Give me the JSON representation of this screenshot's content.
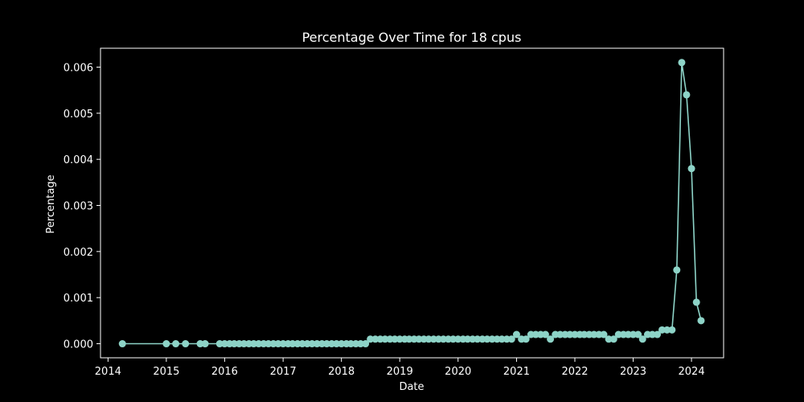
{
  "chart_data": {
    "type": "line",
    "title": "Percentage Over Time for 18 cpus",
    "xlabel": "Date",
    "ylabel": "Percentage",
    "x_ticks": [
      "2014",
      "2015",
      "2016",
      "2017",
      "2018",
      "2019",
      "2020",
      "2021",
      "2022",
      "2023",
      "2024"
    ],
    "y_ticks": [
      "0.000",
      "0.001",
      "0.002",
      "0.003",
      "0.004",
      "0.005",
      "0.006"
    ],
    "xlim": [
      "2013-11-15",
      "2024-07-20"
    ],
    "ylim": [
      -0.000305,
      0.00641
    ],
    "grid": false,
    "legend": "none",
    "colors": {
      "background": "#000000",
      "series": "#8dd3c7",
      "axes": "#ffffff"
    },
    "series": [
      {
        "x": [
          "2014-04-01",
          "2015-01-01",
          "2015-03-01",
          "2015-05-01",
          "2015-08-01",
          "2015-09-01",
          "2015-12-01",
          "2016-01-01",
          "2016-02-01",
          "2016-03-01",
          "2016-04-01",
          "2016-05-01",
          "2016-06-01",
          "2016-07-01",
          "2016-08-01",
          "2016-09-01",
          "2016-10-01",
          "2016-11-01",
          "2016-12-01",
          "2017-01-01",
          "2017-02-01",
          "2017-03-01",
          "2017-04-01",
          "2017-05-01",
          "2017-06-01",
          "2017-07-01",
          "2017-08-01",
          "2017-09-01",
          "2017-10-01",
          "2017-11-01",
          "2017-12-01",
          "2018-01-01",
          "2018-02-01",
          "2018-03-01",
          "2018-04-01",
          "2018-05-01",
          "2018-06-01",
          "2018-07-01",
          "2018-08-01",
          "2018-09-01",
          "2018-10-01",
          "2018-11-01",
          "2018-12-01",
          "2019-01-01",
          "2019-02-01",
          "2019-03-01",
          "2019-04-01",
          "2019-05-01",
          "2019-06-01",
          "2019-07-01",
          "2019-08-01",
          "2019-09-01",
          "2019-10-01",
          "2019-11-01",
          "2019-12-01",
          "2020-01-01",
          "2020-02-01",
          "2020-03-01",
          "2020-04-01",
          "2020-05-01",
          "2020-06-01",
          "2020-07-01",
          "2020-08-01",
          "2020-09-01",
          "2020-10-01",
          "2020-11-01",
          "2020-12-01",
          "2021-01-01",
          "2021-02-01",
          "2021-03-01",
          "2021-04-01",
          "2021-05-01",
          "2021-06-01",
          "2021-07-01",
          "2021-08-01",
          "2021-09-01",
          "2021-10-01",
          "2021-11-01",
          "2021-12-01",
          "2022-01-01",
          "2022-02-01",
          "2022-03-01",
          "2022-04-01",
          "2022-05-01",
          "2022-06-01",
          "2022-07-01",
          "2022-08-01",
          "2022-09-01",
          "2022-10-01",
          "2022-11-01",
          "2022-12-01",
          "2023-01-01",
          "2023-02-01",
          "2023-03-01",
          "2023-04-01",
          "2023-05-01",
          "2023-06-01",
          "2023-07-01",
          "2023-08-01",
          "2023-09-01",
          "2023-10-01",
          "2023-11-01",
          "2023-12-01",
          "2024-01-01",
          "2024-02-01",
          "2024-03-01"
        ],
        "y": [
          0.0,
          0.0,
          0.0,
          0.0,
          0.0,
          0.0,
          0.0,
          0.0,
          0.0,
          0.0,
          0.0,
          0.0,
          0.0,
          0.0,
          0.0,
          0.0,
          0.0,
          0.0,
          0.0,
          0.0,
          0.0,
          0.0,
          0.0,
          0.0,
          0.0,
          0.0,
          0.0,
          0.0,
          0.0,
          0.0,
          0.0,
          0.0,
          0.0,
          0.0,
          0.0,
          0.0,
          0.0,
          0.0001,
          0.0001,
          0.0001,
          0.0001,
          0.0001,
          0.0001,
          0.0001,
          0.0001,
          0.0001,
          0.0001,
          0.0001,
          0.0001,
          0.0001,
          0.0001,
          0.0001,
          0.0001,
          0.0001,
          0.0001,
          0.0001,
          0.0001,
          0.0001,
          0.0001,
          0.0001,
          0.0001,
          0.0001,
          0.0001,
          0.0001,
          0.0001,
          0.0001,
          0.0001,
          0.0002,
          0.0001,
          0.0001,
          0.0002,
          0.0002,
          0.0002,
          0.0002,
          0.0001,
          0.0002,
          0.0002,
          0.0002,
          0.0002,
          0.0002,
          0.0002,
          0.0002,
          0.0002,
          0.0002,
          0.0002,
          0.0002,
          0.0001,
          0.0001,
          0.0002,
          0.0002,
          0.0002,
          0.0002,
          0.0002,
          0.0001,
          0.0002,
          0.0002,
          0.0002,
          0.0003,
          0.0003,
          0.0003,
          0.0016,
          0.0061,
          0.0054,
          0.0038,
          0.0009,
          0.0005
        ]
      }
    ]
  }
}
